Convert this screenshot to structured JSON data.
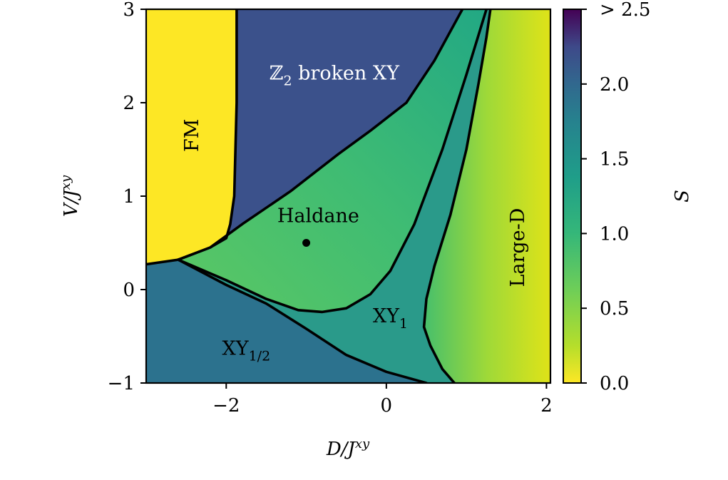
{
  "chart_data": {
    "type": "heatmap",
    "xlabel": "D/J^xy",
    "ylabel": "V/J^xy",
    "xlim": [
      -3,
      2.05
    ],
    "ylim": [
      -1,
      3
    ],
    "x_ticks": [
      {
        "value": -2,
        "label": "−2"
      },
      {
        "value": 0,
        "label": "0"
      },
      {
        "value": 2,
        "label": "2"
      }
    ],
    "y_ticks": [
      {
        "value": -1,
        "label": "−1"
      },
      {
        "value": 0,
        "label": "0"
      },
      {
        "value": 1,
        "label": "1"
      },
      {
        "value": 2,
        "label": "2"
      },
      {
        "value": 3,
        "label": "3"
      }
    ],
    "colorbar": {
      "label": "S",
      "range": [
        0,
        2.5
      ],
      "colormap": "viridis_r",
      "ticks": [
        {
          "value": 0.0,
          "label": "0.0"
        },
        {
          "value": 0.5,
          "label": "0.5"
        },
        {
          "value": 1.0,
          "label": "1.0"
        },
        {
          "value": 1.5,
          "label": "1.5"
        },
        {
          "value": 2.0,
          "label": "2.0"
        },
        {
          "value": 2.5,
          "label": "> 2.5"
        }
      ]
    },
    "regions": [
      {
        "label": "FM",
        "x": -2.35,
        "y": 1.65,
        "rotated": true
      },
      {
        "label": "ℤ2 broken XY",
        "x": -0.65,
        "y": 2.25,
        "white": true
      },
      {
        "label": "Haldane",
        "x": -0.85,
        "y": 0.72
      },
      {
        "label": "XY1",
        "x": 0.05,
        "y": -0.35
      },
      {
        "label": "XY1/2",
        "x": -1.75,
        "y": -0.7
      },
      {
        "label": "Large-D",
        "x": 1.72,
        "y": 0.45,
        "rotated": true
      }
    ],
    "marker_point": {
      "x": -1.0,
      "y": 0.5
    },
    "phase_boundaries": [
      {
        "name": "fm-boundary",
        "points": [
          [
            -1.87,
            3
          ],
          [
            -1.87,
            2
          ],
          [
            -1.9,
            1.0
          ],
          [
            -1.95,
            0.7
          ],
          [
            -2.0,
            0.55
          ],
          [
            -2.2,
            0.45
          ],
          [
            -2.6,
            0.32
          ],
          [
            -3.0,
            0.27
          ]
        ]
      },
      {
        "name": "z2-boundary",
        "points": [
          [
            -2.6,
            0.32
          ],
          [
            -2.2,
            0.45
          ],
          [
            -1.8,
            0.7
          ],
          [
            -1.2,
            1.05
          ],
          [
            -0.6,
            1.45
          ],
          [
            -0.2,
            1.7
          ],
          [
            0.25,
            2.0
          ],
          [
            0.6,
            2.45
          ],
          [
            0.95,
            3.0
          ]
        ]
      },
      {
        "name": "haldane-lower-boundary",
        "points": [
          [
            -2.6,
            0.32
          ],
          [
            -2.0,
            0.1
          ],
          [
            -1.5,
            -0.1
          ],
          [
            -1.1,
            -0.22
          ],
          [
            -0.8,
            -0.24
          ],
          [
            -0.5,
            -0.2
          ],
          [
            -0.2,
            -0.05
          ],
          [
            0.05,
            0.2
          ],
          [
            0.35,
            0.7
          ],
          [
            0.7,
            1.5
          ],
          [
            1.0,
            2.3
          ],
          [
            1.25,
            3.0
          ]
        ]
      },
      {
        "name": "xy-half-boundary",
        "points": [
          [
            -2.6,
            0.32
          ],
          [
            -2.0,
            0.05
          ],
          [
            -1.5,
            -0.15
          ],
          [
            -1.0,
            -0.42
          ],
          [
            -0.5,
            -0.7
          ],
          [
            0.0,
            -0.88
          ],
          [
            0.5,
            -1.0
          ]
        ]
      },
      {
        "name": "large-d-boundary",
        "points": [
          [
            0.85,
            -1.0
          ],
          [
            0.7,
            -0.85
          ],
          [
            0.55,
            -0.6
          ],
          [
            0.47,
            -0.4
          ],
          [
            0.5,
            -0.1
          ],
          [
            0.6,
            0.25
          ],
          [
            0.8,
            0.8
          ],
          [
            1.0,
            1.5
          ],
          [
            1.15,
            2.2
          ],
          [
            1.25,
            2.7
          ],
          [
            1.3,
            3.0
          ]
        ]
      }
    ]
  }
}
